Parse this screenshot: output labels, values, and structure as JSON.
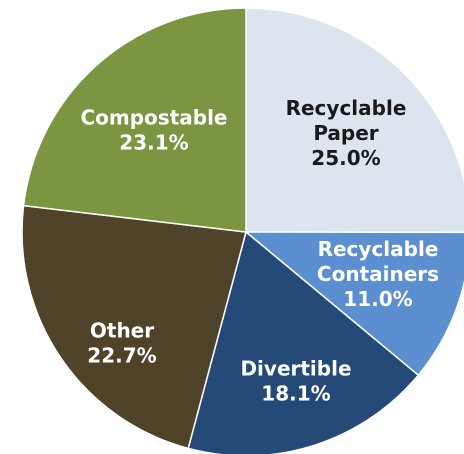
{
  "chart_data": {
    "type": "pie",
    "title": "",
    "slices": [
      {
        "category": "Recyclable Paper",
        "label_lines": [
          "Recyclable",
          "Paper",
          "25.0%"
        ],
        "value": 25.0,
        "color": "#dce4ee",
        "label_color": "#1a1a1a"
      },
      {
        "category": "Recyclable Containers",
        "label_lines": [
          "Recyclable",
          "Containers",
          "11.0%"
        ],
        "value": 11.0,
        "color": "#5b8fd0",
        "label_color": "#ffffff"
      },
      {
        "category": "Divertible",
        "label_lines": [
          "Divertible",
          "18.1%"
        ],
        "value": 18.1,
        "color": "#254a78",
        "label_color": "#ffffff"
      },
      {
        "category": "Other",
        "label_lines": [
          "Other",
          "22.7%"
        ],
        "value": 22.7,
        "color": "#4f442a",
        "label_color": "#ffffff"
      },
      {
        "category": "Compostable",
        "label_lines": [
          "Compostable",
          "23.1%"
        ],
        "value": 23.1,
        "color": "#7b9540",
        "label_color": "#ffffff"
      }
    ],
    "start_angle": "12 o'clock",
    "direction": "clockwise",
    "legend": "none"
  }
}
